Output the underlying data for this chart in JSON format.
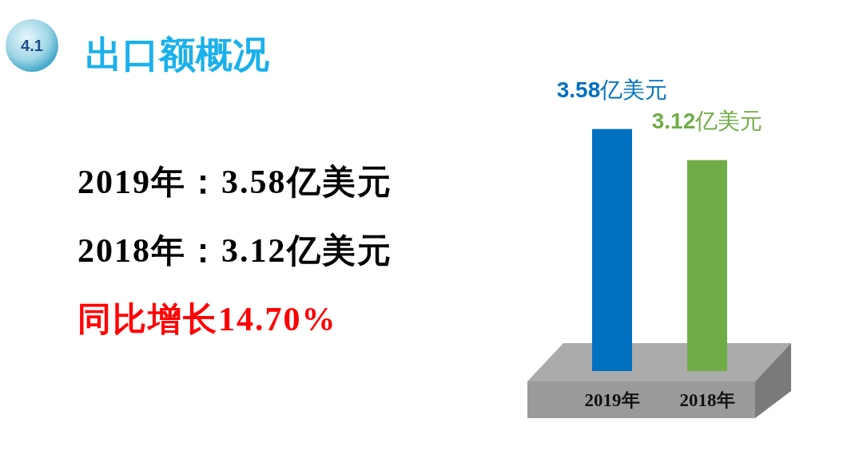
{
  "chart_data": {
    "type": "bar",
    "title": "出口额概况",
    "categories": [
      "2019年",
      "2018年"
    ],
    "values": [
      3.58,
      3.12
    ],
    "colors": [
      "#0070c0",
      "#70ad47"
    ],
    "value_labels": [
      "3.58亿美元",
      "3.12亿美元"
    ],
    "ylim": [
      0,
      3.6
    ],
    "annotations": [
      "4.1",
      "2019年：3.58亿美元",
      "2018年：3.12亿美元",
      "同比增长14.70%"
    ]
  }
}
